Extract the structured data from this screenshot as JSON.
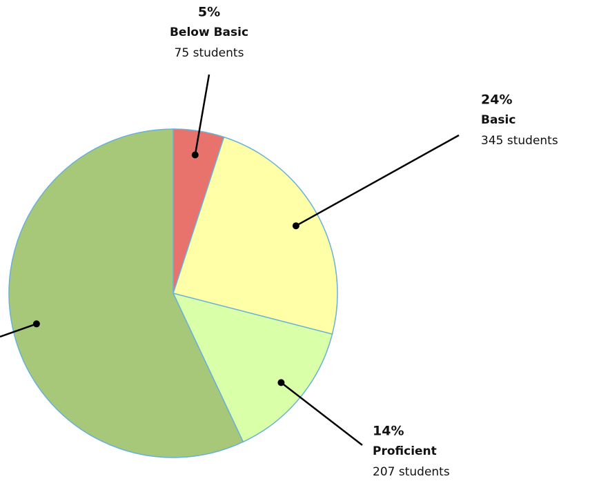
{
  "chart_data": {
    "type": "pie",
    "categories": [
      "Below Basic",
      "Basic",
      "Proficient",
      null
    ],
    "values": [
      5,
      24,
      14,
      57
    ],
    "value_labels": [
      "5%",
      "24%",
      "14%",
      null
    ],
    "counts": [
      "75 students",
      "345 students",
      "207 students",
      null
    ],
    "colors": [
      "#e8736c",
      "#ffffa8",
      "#d9ffa8",
      "#a6c878"
    ],
    "edge_color": "#6ab0d8"
  }
}
